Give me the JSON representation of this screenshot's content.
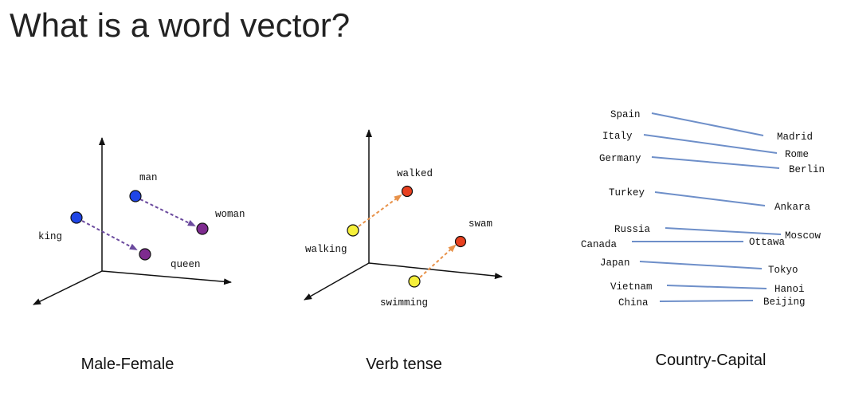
{
  "title": "What is a word vector?",
  "colors": {
    "blue": "#1f45e6",
    "purple": "#7e2b8f",
    "yellow": "#f6f03a",
    "red": "#e8401f",
    "purple_arrow": "#6b4a9e",
    "orange_arrow": "#e8924a",
    "link": "#6e8fc9"
  },
  "panels": [
    {
      "caption": "Male-Female",
      "words": {
        "man": "man",
        "woman": "woman",
        "king": "king",
        "queen": "queen"
      }
    },
    {
      "caption": "Verb tense",
      "words": {
        "walked": "walked",
        "walking": "walking",
        "swam": "swam",
        "swimming": "swimming"
      }
    },
    {
      "caption": "Country-Capital",
      "pairs": [
        {
          "country": "Spain",
          "capital": "Madrid"
        },
        {
          "country": "Italy",
          "capital": "Rome"
        },
        {
          "country": "Germany",
          "capital": "Berlin"
        },
        {
          "country": "Turkey",
          "capital": "Ankara"
        },
        {
          "country": "Russia",
          "capital": "Moscow"
        },
        {
          "country": "Canada",
          "capital": "Ottawa"
        },
        {
          "country": "Japan",
          "capital": "Tokyo"
        },
        {
          "country": "Vietnam",
          "capital": "Hanoi"
        },
        {
          "country": "China",
          "capital": "Beijing"
        }
      ]
    }
  ]
}
